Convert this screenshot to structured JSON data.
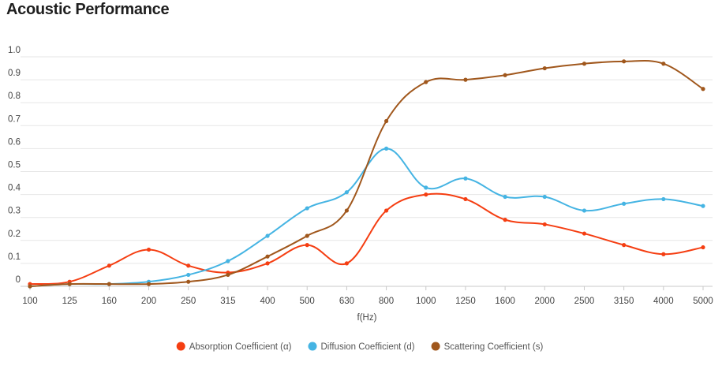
{
  "page": {
    "title": "Acoustic Performance"
  },
  "chart_data": {
    "type": "line",
    "title": "Acoustic Performance",
    "xlabel": "f(Hz)",
    "ylabel": "",
    "ylim": [
      0,
      1.0
    ],
    "yticks": [
      "0",
      "0.1",
      "0.2",
      "0.3",
      "0.4",
      "0.5",
      "0.6",
      "0.7",
      "0.8",
      "0.9",
      "1.0"
    ],
    "grid": true,
    "legend_position": "bottom",
    "categories": [
      "100",
      "125",
      "160",
      "200",
      "250",
      "315",
      "400",
      "500",
      "630",
      "800",
      "1000",
      "1250",
      "1600",
      "2000",
      "2500",
      "3150",
      "4000",
      "5000"
    ],
    "series": [
      {
        "name": "Absorption Coefficient (α)",
        "color": "#f53e12",
        "values": [
          0.01,
          0.02,
          0.09,
          0.16,
          0.09,
          0.06,
          0.1,
          0.18,
          0.1,
          0.33,
          0.4,
          0.38,
          0.29,
          0.27,
          0.23,
          0.18,
          0.14,
          0.17
        ]
      },
      {
        "name": "Diffusion Coefficient (d)",
        "color": "#45b4e3",
        "values": [
          0.0,
          0.01,
          0.01,
          0.02,
          0.05,
          0.11,
          0.22,
          0.34,
          0.41,
          0.6,
          0.43,
          0.47,
          0.39,
          0.39,
          0.33,
          0.36,
          0.38,
          0.35
        ]
      },
      {
        "name": "Scattering Coefficient (s)",
        "color": "#a0571c",
        "values": [
          0.0,
          0.01,
          0.01,
          0.01,
          0.02,
          0.05,
          0.13,
          0.22,
          0.33,
          0.72,
          0.89,
          0.9,
          0.92,
          0.95,
          0.97,
          0.98,
          0.97,
          0.86
        ]
      }
    ]
  }
}
